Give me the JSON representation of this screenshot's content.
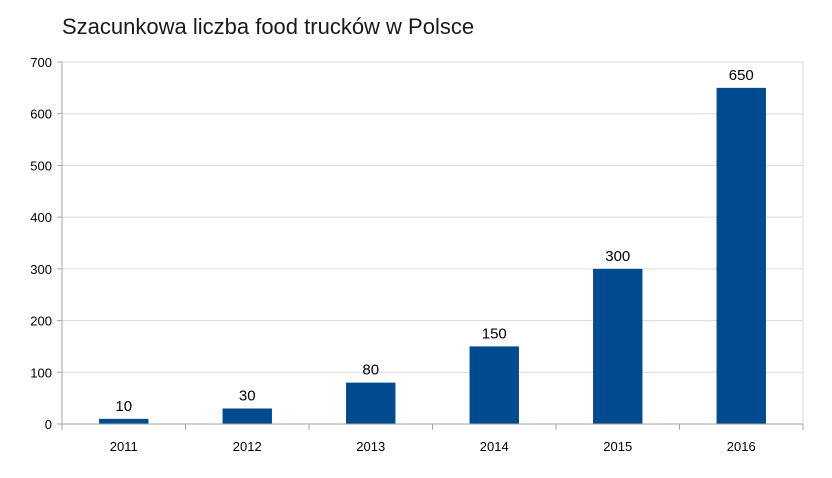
{
  "chart_data": {
    "type": "bar",
    "title": "Szacunkowa liczba food trucków w Polsce",
    "categories": [
      "2011",
      "2012",
      "2013",
      "2014",
      "2015",
      "2016"
    ],
    "values": [
      10,
      30,
      80,
      150,
      300,
      650
    ],
    "data_labels": [
      "10",
      "30",
      "80",
      "150",
      "300",
      "650"
    ],
    "ylim": [
      0,
      700
    ],
    "yticks": [
      0,
      100,
      200,
      300,
      400,
      500,
      600,
      700
    ],
    "ytick_labels": [
      "0",
      "100",
      "200",
      "300",
      "400",
      "500",
      "600",
      "700"
    ],
    "xlabel": "",
    "ylabel": "",
    "grid": true,
    "legend": "none",
    "colors": {
      "bar": "#004a8f",
      "grid": "#d9d9d9",
      "axis": "#a6a6a6",
      "text": "#000000"
    }
  }
}
